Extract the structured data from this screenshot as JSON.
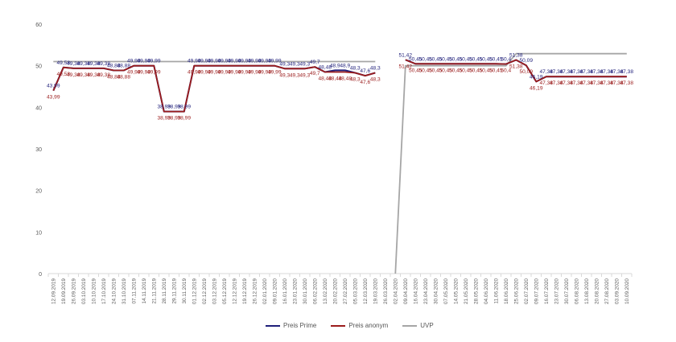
{
  "chart_data": {
    "type": "line",
    "title": "",
    "xlabel": "",
    "ylabel": "",
    "ylim": [
      0,
      60
    ],
    "yticks": [
      0,
      10,
      20,
      30,
      40,
      50,
      60
    ],
    "grid": false,
    "legend_position": "bottom",
    "categories": [
      "12.09.2019",
      "19.09.2019",
      "26.09.2019",
      "03.10.2019",
      "10.10.2019",
      "17.10.2019",
      "24.10.2019",
      "31.10.2019",
      "07.11.2019",
      "14.11.2019",
      "21.11.2019",
      "28.11.2019",
      "29.11.2019",
      "30.11.2019",
      "01.12.2019",
      "02.12.2019",
      "03.12.2019",
      "05.12.2019",
      "12.12.2019",
      "19.12.2019",
      "26.12.2019",
      "02.01.2020",
      "09.01.2020",
      "16.01.2020",
      "23.01.2020",
      "30.01.2020",
      "06.02.2020",
      "13.02.2020",
      "20.02.2020",
      "27.02.2020",
      "05.03.2020",
      "12.03.2020",
      "19.03.2020",
      "26.03.2020",
      "02.04.2020",
      "09.04.2020",
      "16.04.2020",
      "23.04.2020",
      "30.04.2020",
      "07.05.2020",
      "14.05.2020",
      "21.05.2020",
      "28.05.2020",
      "04.06.2020",
      "11.06.2020",
      "18.06.2020",
      "25.06.2020",
      "02.07.2020",
      "09.07.2020",
      "16.07.2020",
      "23.07.2020",
      "30.07.2020",
      "06.08.2020",
      "13.08.2020",
      "20.08.2020",
      "27.08.2020",
      "03.09.2020",
      "10.09.2020"
    ],
    "series": [
      {
        "name": "Preis Prime",
        "color": "#1f1f7a",
        "values": [
          43.99,
          49.58,
          49.38,
          49.38,
          49.38,
          49.38,
          48.88,
          48.88,
          49.99,
          49.99,
          49.99,
          38.99,
          38.99,
          38.99,
          49.99,
          49.99,
          49.99,
          49.99,
          49.99,
          49.99,
          49.99,
          49.99,
          49.99,
          49.3,
          49.3,
          49.3,
          49.7,
          48.48,
          48.9,
          48.9,
          48.3,
          47.6,
          48.3,
          null,
          null,
          51.42,
          50.45,
          50.45,
          50.45,
          50.45,
          50.45,
          50.45,
          50.45,
          50.45,
          50.45,
          50.4,
          51.38,
          50.09,
          46.19,
          47.38,
          47.38,
          47.38,
          47.38,
          47.38,
          47.38,
          47.38,
          47.38,
          47.38
        ],
        "labels": [
          "43,99",
          "49,58",
          "49,38",
          "49,38",
          "49,38",
          "49,38",
          "48,88",
          "48,88",
          "49,99",
          "49,99",
          "49,99",
          "38,99",
          "38,99",
          "38,99",
          "49,99",
          "49,99",
          "49,99",
          "49,99",
          "49,99",
          "49,99",
          "49,99",
          "49,99",
          "49,99",
          "49,3",
          "49,3",
          "49,3",
          "49,7",
          "48,48",
          "48,9",
          "48,9",
          "48,3",
          "47,6",
          "48,3",
          "",
          "",
          "51,42",
          "50,45",
          "50,45",
          "50,45",
          "50,45",
          "50,45",
          "50,45",
          "50,45",
          "50,45",
          "50,45",
          "50,4",
          "51,38",
          "50,09",
          "46,19",
          "47,38",
          "47,38",
          "47,38",
          "47,38",
          "47,38",
          "47,38",
          "47,38",
          "47,38",
          "47,38"
        ]
      },
      {
        "name": "Preis anonym",
        "color": "#9b1c1c",
        "values": [
          43.99,
          49.58,
          49.38,
          49.38,
          49.38,
          49.38,
          48.88,
          48.88,
          49.99,
          49.99,
          49.99,
          38.99,
          38.99,
          38.99,
          49.99,
          49.99,
          49.99,
          49.99,
          49.99,
          49.99,
          49.99,
          49.99,
          49.99,
          49.3,
          49.3,
          49.3,
          49.7,
          48.48,
          48.48,
          48.48,
          48.3,
          47.6,
          48.3,
          null,
          null,
          51.42,
          50.45,
          50.45,
          50.45,
          50.45,
          50.45,
          50.45,
          50.45,
          50.45,
          50.45,
          50.4,
          51.38,
          50.09,
          46.19,
          47.38,
          47.38,
          47.38,
          47.38,
          47.38,
          47.38,
          47.38,
          47.38,
          47.38
        ],
        "labels": [
          "43,99",
          "49,58",
          "49,38",
          "49,38",
          "49,38",
          "49,38",
          "48,88",
          "48,88",
          "49,99",
          "49,99",
          "49,99",
          "38,99",
          "38,99",
          "38,99",
          "49,99",
          "49,99",
          "49,99",
          "49,99",
          "49,99",
          "49,99",
          "49,99",
          "49,99",
          "49,99",
          "49,3",
          "49,3",
          "49,3",
          "49,7",
          "48,48",
          "48,48",
          "48,48",
          "48,3",
          "47,6",
          "48,3",
          "",
          "",
          "51,42",
          "50,45",
          "50,45",
          "50,45",
          "50,45",
          "50,45",
          "50,45",
          "50,45",
          "50,45",
          "50,45",
          "50,4",
          "51,38",
          "50,09",
          "46,19",
          "47,38",
          "47,38",
          "47,38",
          "47,38",
          "47,38",
          "47,38",
          "47,38",
          "47,38",
          "47,38"
        ]
      },
      {
        "name": "UVP",
        "color": "#a6a6a6",
        "values": [
          51,
          51,
          51,
          51,
          51,
          51,
          51,
          51,
          51,
          51,
          51,
          51,
          51,
          51,
          51,
          51,
          51,
          51,
          51,
          51,
          51,
          51,
          51,
          51,
          51,
          51,
          51,
          51,
          51,
          51,
          51,
          51,
          51,
          null,
          0,
          50,
          50,
          50,
          50,
          50,
          50,
          50,
          50,
          50,
          50,
          50,
          52.9,
          52.9,
          52.9,
          52.9,
          52.9,
          52.9,
          52.9,
          52.9,
          52.9,
          52.9,
          52.9,
          52.9
        ],
        "labels": []
      }
    ]
  }
}
